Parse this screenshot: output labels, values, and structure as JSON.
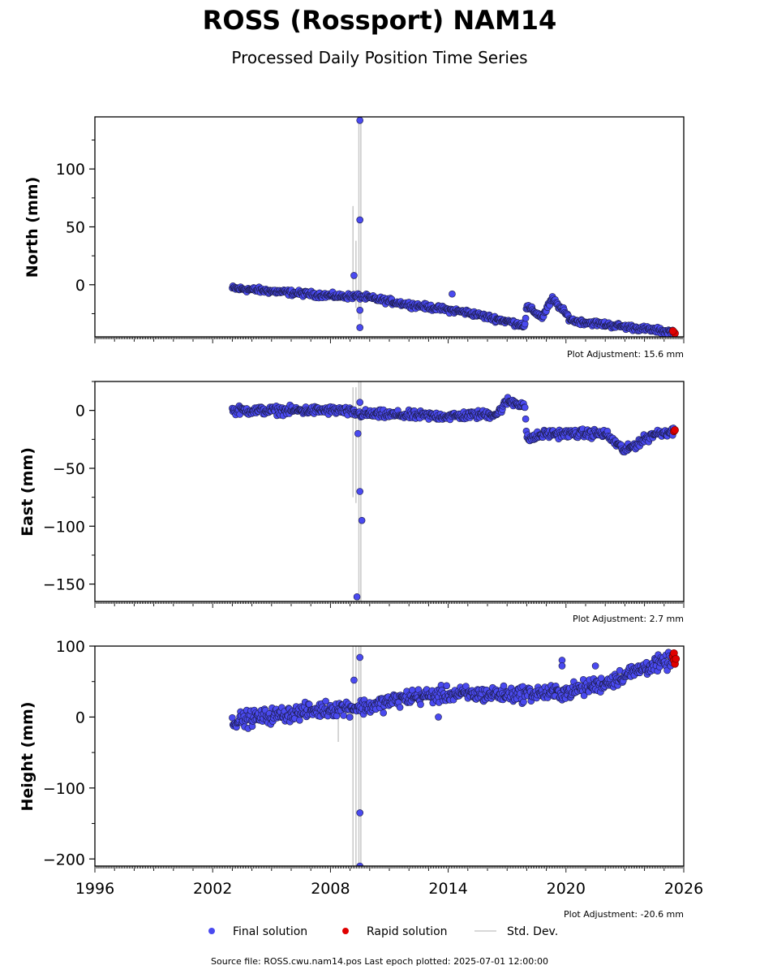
{
  "title": "ROSS (Rossport) NAM14",
  "subtitle": "Processed Daily Position Time Series",
  "footer": "Source file: ROSS.cwu.nam14.pos  Last epoch plotted: 2025-07-01 12:00:00",
  "legend": [
    {
      "label": "Final solution",
      "color": "#4a4af0",
      "symbol": "dot"
    },
    {
      "label": "Rapid solution",
      "color": "#e00000",
      "symbol": "dot"
    },
    {
      "label": "Std. Dev.",
      "color": "#cccccc",
      "symbol": "line"
    }
  ],
  "colors": {
    "final": "#4a4af0",
    "final_edge": "#1a1a40",
    "rapid": "#e00000",
    "stddev": "#c8c8c8"
  },
  "chart_data": [
    {
      "type": "scatter",
      "ylabel": "North (mm)",
      "adjustment": "Plot Adjustment: 15.6 mm",
      "xlim": [
        1996,
        2026
      ],
      "ylim": [
        -45,
        145
      ],
      "yticks": [
        0,
        50,
        100
      ],
      "ytick_labels": [
        "0",
        "50",
        "100"
      ],
      "xtick_labels_visible": false,
      "start": 2003.0,
      "end": 2025.5,
      "trend": [
        [
          2003.0,
          -3
        ],
        [
          2008.5,
          -10
        ],
        [
          2009.5,
          -10
        ],
        [
          2012.0,
          -17
        ],
        [
          2015.0,
          -24
        ],
        [
          2017.9,
          -35
        ],
        [
          2018.0,
          -19
        ],
        [
          2018.8,
          -28
        ],
        [
          2019.3,
          -12
        ],
        [
          2020.3,
          -31
        ],
        [
          2025.5,
          -41
        ]
      ],
      "noise": 2,
      "outliers": [
        [
          2009.5,
          142
        ],
        [
          2009.5,
          56
        ],
        [
          2009.5,
          -37
        ],
        [
          2009.5,
          -22
        ],
        [
          2014.2,
          -8
        ],
        [
          2009.2,
          8
        ]
      ],
      "rapid": [
        [
          2025.5,
          -41
        ],
        [
          2025.55,
          -42
        ],
        [
          2025.45,
          -40
        ]
      ],
      "stddev_spikes": [
        [
          2009.15,
          -15,
          68
        ],
        [
          2009.3,
          -20,
          38
        ],
        [
          2009.45,
          -30,
          145
        ],
        [
          2009.55,
          -35,
          145
        ]
      ]
    },
    {
      "type": "scatter",
      "ylabel": "East (mm)",
      "adjustment": "Plot Adjustment: 2.7 mm",
      "xlim": [
        1996,
        2026
      ],
      "ylim": [
        -165,
        25
      ],
      "yticks": [
        -150,
        -100,
        -50,
        0
      ],
      "ytick_labels": [
        "−150",
        "−100",
        "−50",
        "0"
      ],
      "xtick_labels_visible": false,
      "start": 2003.0,
      "end": 2025.5,
      "trend": [
        [
          2003.0,
          0
        ],
        [
          2008.5,
          0
        ],
        [
          2009.5,
          -3
        ],
        [
          2014.0,
          -5
        ],
        [
          2016.5,
          -3
        ],
        [
          2017.0,
          8
        ],
        [
          2017.9,
          5
        ],
        [
          2018.0,
          -25
        ],
        [
          2019.0,
          -20
        ],
        [
          2020.0,
          -20
        ],
        [
          2022.0,
          -20
        ],
        [
          2023.0,
          -35
        ],
        [
          2024.5,
          -20
        ],
        [
          2025.5,
          -18
        ]
      ],
      "noise": 3,
      "outliers": [
        [
          2009.5,
          -70
        ],
        [
          2009.6,
          -95
        ],
        [
          2009.35,
          -161
        ],
        [
          2009.4,
          -20
        ],
        [
          2009.5,
          7
        ]
      ],
      "rapid": [
        [
          2025.5,
          -18
        ],
        [
          2025.55,
          -17
        ]
      ],
      "stddev_spikes": [
        [
          2009.15,
          -75,
          20
        ],
        [
          2009.3,
          -80,
          20
        ],
        [
          2009.45,
          -165,
          25
        ],
        [
          2009.55,
          -165,
          25
        ]
      ]
    },
    {
      "type": "scatter",
      "ylabel": "Height (mm)",
      "adjustment": "Plot Adjustment: -20.6 mm",
      "xlim": [
        1996,
        2026
      ],
      "ylim": [
        -210,
        100
      ],
      "yticks": [
        -200,
        -100,
        0,
        100
      ],
      "ytick_labels": [
        "−200",
        "−100",
        "0",
        "100"
      ],
      "xticks": [
        1996,
        2002,
        2008,
        2014,
        2020,
        2026
      ],
      "xtick_labels": [
        "1996",
        "2002",
        "2008",
        "2014",
        "2020",
        "2026"
      ],
      "xtick_labels_visible": true,
      "start": 2003.0,
      "end": 2025.5,
      "trend": [
        [
          2003.0,
          -5
        ],
        [
          2005.0,
          2
        ],
        [
          2008.0,
          12
        ],
        [
          2010.0,
          15
        ],
        [
          2012.0,
          28
        ],
        [
          2014.0,
          32
        ],
        [
          2017.0,
          32
        ],
        [
          2020.0,
          35
        ],
        [
          2022.0,
          48
        ],
        [
          2024.0,
          70
        ],
        [
          2025.5,
          80
        ]
      ],
      "noise": 9,
      "outliers": [
        [
          2009.5,
          84
        ],
        [
          2009.5,
          -135
        ],
        [
          2009.5,
          -210
        ],
        [
          2009.2,
          52
        ],
        [
          2019.8,
          80
        ],
        [
          2019.8,
          72
        ],
        [
          2013.5,
          0
        ],
        [
          2021.5,
          72
        ]
      ],
      "rapid": [
        [
          2025.45,
          85
        ],
        [
          2025.5,
          80
        ],
        [
          2025.55,
          75
        ],
        [
          2025.5,
          90
        ],
        [
          2025.6,
          82
        ]
      ],
      "stddev_spikes": [
        [
          2009.15,
          -210,
          100
        ],
        [
          2009.3,
          -210,
          100
        ],
        [
          2009.45,
          -210,
          100
        ],
        [
          2009.55,
          -210,
          100
        ],
        [
          2008.4,
          -35,
          20
        ]
      ]
    }
  ]
}
